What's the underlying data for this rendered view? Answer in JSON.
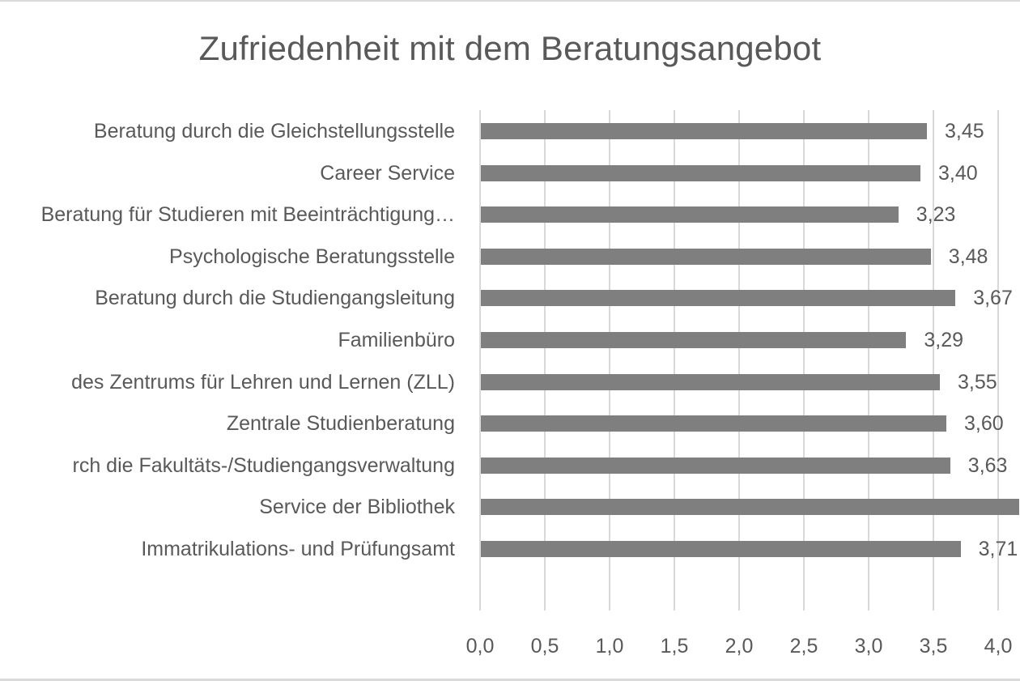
{
  "chart_data": {
    "type": "bar",
    "orientation": "horizontal",
    "title": "Zufriedenheit mit dem Beratungsangebot",
    "xlabel": "",
    "ylabel": "",
    "xlim": [
      0,
      4.0
    ],
    "grid": true,
    "legend": null,
    "bar_color": "#7f7f7f",
    "x_ticks": [
      "0,0",
      "0,5",
      "1,0",
      "1,5",
      "2,0",
      "2,5",
      "3,0",
      "3,5",
      "4,0"
    ],
    "categories": [
      "Beratung durch die Gleichstellungsstelle",
      "Career Service",
      "Beratung für Studieren mit Beeinträchtigung…",
      "Psychologische Beratungsstelle",
      "Beratung durch die Studiengangsleitung",
      "Familienbüro",
      "des Zentrums für Lehren und Lernen (ZLL)",
      "Zentrale Studienberatung",
      "rch die Fakultäts-/Studiengangsverwaltung",
      "Service der Bibliothek",
      "Immatrikulations- und Prüfungsamt"
    ],
    "values": [
      3.45,
      3.4,
      3.23,
      3.48,
      3.67,
      3.29,
      3.55,
      3.6,
      3.63,
      4.16,
      3.71
    ],
    "value_labels": [
      "3,45",
      "3,40",
      "3,23",
      "3,48",
      "3,67",
      "3,29",
      "3,55",
      "3,60",
      "3,63",
      "",
      "3,71"
    ],
    "notes": "Value for 'Service der Bibliothek' estimated from bar length; its data label is clipped off the right edge."
  }
}
